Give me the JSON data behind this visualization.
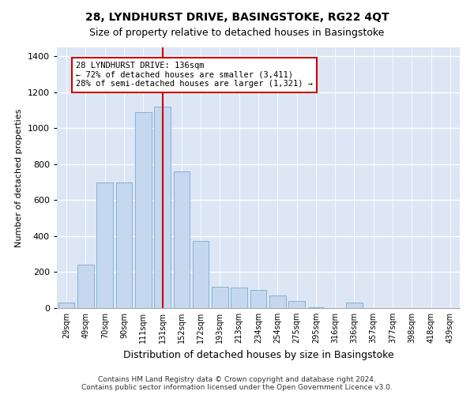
{
  "title": "28, LYNDHURST DRIVE, BASINGSTOKE, RG22 4QT",
  "subtitle": "Size of property relative to detached houses in Basingstoke",
  "xlabel": "Distribution of detached houses by size in Basingstoke",
  "ylabel": "Number of detached properties",
  "footer_line1": "Contains HM Land Registry data © Crown copyright and database right 2024.",
  "footer_line2": "Contains public sector information licensed under the Open Government Licence v3.0.",
  "categories": [
    "29sqm",
    "49sqm",
    "70sqm",
    "90sqm",
    "111sqm",
    "131sqm",
    "152sqm",
    "172sqm",
    "193sqm",
    "213sqm",
    "234sqm",
    "254sqm",
    "275sqm",
    "295sqm",
    "316sqm",
    "336sqm",
    "357sqm",
    "377sqm",
    "398sqm",
    "418sqm",
    "439sqm"
  ],
  "values": [
    30,
    240,
    700,
    700,
    1090,
    1120,
    760,
    375,
    120,
    115,
    100,
    70,
    40,
    5,
    0,
    30,
    0,
    0,
    0,
    0,
    0
  ],
  "bar_color": "#c5d8ef",
  "bar_edge_color": "#7aaacc",
  "bg_color": "#dce6f5",
  "grid_color": "#ffffff",
  "vline_color": "#cc0000",
  "vline_index": 5.5,
  "annotation_text": "28 LYNDHURST DRIVE: 136sqm\n← 72% of detached houses are smaller (3,411)\n28% of semi-detached houses are larger (1,321) →",
  "annotation_box_color": "#ffffff",
  "annotation_box_edge_color": "#cc0000",
  "ylim": [
    0,
    1450
  ],
  "yticks": [
    0,
    200,
    400,
    600,
    800,
    1000,
    1200,
    1400
  ],
  "title_fontsize": 10,
  "subtitle_fontsize": 9,
  "ylabel_fontsize": 8,
  "xlabel_fontsize": 9
}
